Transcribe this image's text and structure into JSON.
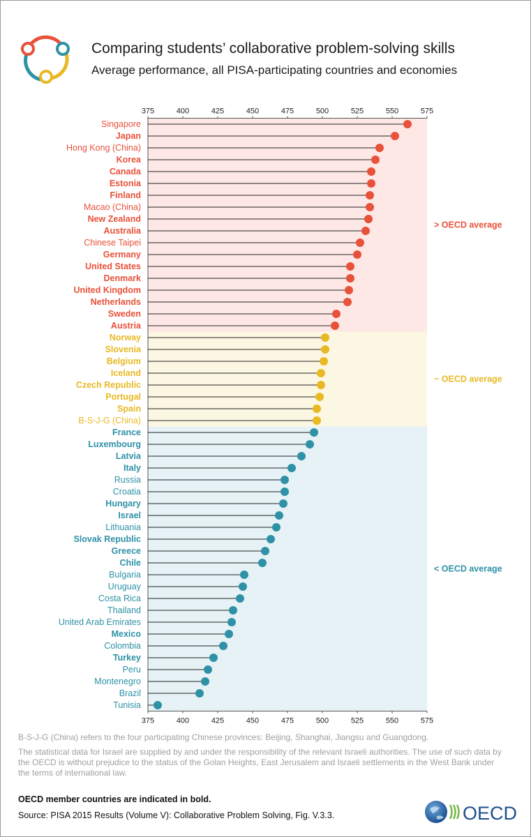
{
  "header": {
    "title": "Comparing students’ collaborative problem-solving skills",
    "subtitle": "Average performance, all PISA-participating countries and economies"
  },
  "colors": {
    "above": "#e8513a",
    "similar": "#e8b923",
    "below": "#2e91a6",
    "above_bg": "#fde8e6",
    "similar_bg": "#fcf7e2",
    "below_bg": "#e6f2f5",
    "lollipop_line": "#222222"
  },
  "chart_data": {
    "type": "lollipop",
    "title": "Comparing students’ collaborative problem-solving skills",
    "subtitle": "Average performance, all PISA-participating countries and economies",
    "xlim": [
      375,
      575
    ],
    "xticks": [
      375,
      400,
      425,
      450,
      475,
      500,
      525,
      550,
      575
    ],
    "bands": [
      {
        "group": "above",
        "label": "> OECD average"
      },
      {
        "group": "similar",
        "label": "~ OECD average"
      },
      {
        "group": "below",
        "label": "< OECD average"
      }
    ],
    "countries": [
      {
        "name": "Singapore",
        "value": 561,
        "oecd": false,
        "group": "above"
      },
      {
        "name": "Japan",
        "value": 552,
        "oecd": true,
        "group": "above"
      },
      {
        "name": "Hong Kong (China)",
        "value": 541,
        "oecd": false,
        "group": "above"
      },
      {
        "name": "Korea",
        "value": 538,
        "oecd": true,
        "group": "above"
      },
      {
        "name": "Canada",
        "value": 535,
        "oecd": true,
        "group": "above"
      },
      {
        "name": "Estonia",
        "value": 535,
        "oecd": true,
        "group": "above"
      },
      {
        "name": "Finland",
        "value": 534,
        "oecd": true,
        "group": "above"
      },
      {
        "name": "Macao (China)",
        "value": 534,
        "oecd": false,
        "group": "above"
      },
      {
        "name": "New Zealand",
        "value": 533,
        "oecd": true,
        "group": "above"
      },
      {
        "name": "Australia",
        "value": 531,
        "oecd": true,
        "group": "above"
      },
      {
        "name": "Chinese Taipei",
        "value": 527,
        "oecd": false,
        "group": "above"
      },
      {
        "name": "Germany",
        "value": 525,
        "oecd": true,
        "group": "above"
      },
      {
        "name": "United States",
        "value": 520,
        "oecd": true,
        "group": "above"
      },
      {
        "name": "Denmark",
        "value": 520,
        "oecd": true,
        "group": "above"
      },
      {
        "name": "United Kingdom",
        "value": 519,
        "oecd": true,
        "group": "above"
      },
      {
        "name": "Netherlands",
        "value": 518,
        "oecd": true,
        "group": "above"
      },
      {
        "name": "Sweden",
        "value": 510,
        "oecd": true,
        "group": "above"
      },
      {
        "name": "Austria",
        "value": 509,
        "oecd": true,
        "group": "above"
      },
      {
        "name": "Norway",
        "value": 502,
        "oecd": true,
        "group": "similar"
      },
      {
        "name": "Slovenia",
        "value": 502,
        "oecd": true,
        "group": "similar"
      },
      {
        "name": "Belgium",
        "value": 501,
        "oecd": true,
        "group": "similar"
      },
      {
        "name": "Iceland",
        "value": 499,
        "oecd": true,
        "group": "similar"
      },
      {
        "name": "Czech Republic",
        "value": 499,
        "oecd": true,
        "group": "similar"
      },
      {
        "name": "Portugal",
        "value": 498,
        "oecd": true,
        "group": "similar"
      },
      {
        "name": "Spain",
        "value": 496,
        "oecd": true,
        "group": "similar"
      },
      {
        "name": "B-S-J-G (China)",
        "value": 496,
        "oecd": false,
        "group": "similar"
      },
      {
        "name": "France",
        "value": 494,
        "oecd": true,
        "group": "below"
      },
      {
        "name": "Luxembourg",
        "value": 491,
        "oecd": true,
        "group": "below"
      },
      {
        "name": "Latvia",
        "value": 485,
        "oecd": true,
        "group": "below"
      },
      {
        "name": "Italy",
        "value": 478,
        "oecd": true,
        "group": "below"
      },
      {
        "name": "Russia",
        "value": 473,
        "oecd": false,
        "group": "below"
      },
      {
        "name": "Croatia",
        "value": 473,
        "oecd": false,
        "group": "below"
      },
      {
        "name": "Hungary",
        "value": 472,
        "oecd": true,
        "group": "below"
      },
      {
        "name": "Israel",
        "value": 469,
        "oecd": true,
        "group": "below"
      },
      {
        "name": "Lithuania",
        "value": 467,
        "oecd": false,
        "group": "below"
      },
      {
        "name": "Slovak Republic",
        "value": 463,
        "oecd": true,
        "group": "below"
      },
      {
        "name": "Greece",
        "value": 459,
        "oecd": true,
        "group": "below"
      },
      {
        "name": "Chile",
        "value": 457,
        "oecd": true,
        "group": "below"
      },
      {
        "name": "Bulgaria",
        "value": 444,
        "oecd": false,
        "group": "below"
      },
      {
        "name": "Uruguay",
        "value": 443,
        "oecd": false,
        "group": "below"
      },
      {
        "name": "Costa Rica",
        "value": 441,
        "oecd": false,
        "group": "below"
      },
      {
        "name": "Thailand",
        "value": 436,
        "oecd": false,
        "group": "below"
      },
      {
        "name": "United Arab Emirates",
        "value": 435,
        "oecd": false,
        "group": "below"
      },
      {
        "name": "Mexico",
        "value": 433,
        "oecd": true,
        "group": "below"
      },
      {
        "name": "Colombia",
        "value": 429,
        "oecd": false,
        "group": "below"
      },
      {
        "name": "Turkey",
        "value": 422,
        "oecd": true,
        "group": "below"
      },
      {
        "name": "Peru",
        "value": 418,
        "oecd": false,
        "group": "below"
      },
      {
        "name": "Montenegro",
        "value": 416,
        "oecd": false,
        "group": "below"
      },
      {
        "name": "Brazil",
        "value": 412,
        "oecd": false,
        "group": "below"
      },
      {
        "name": "Tunisia",
        "value": 382,
        "oecd": false,
        "group": "below"
      }
    ]
  },
  "notes": {
    "bsjg": "B-S-J-G (China) refers to the four participating Chinese provinces: Beijing, Shanghai, Jiangsu and Guangdong.",
    "israel": "The statistical data for Israel are supplied by and under the responsibility of the relevant Israeli authorities. The use of such data by the OECD is without prejudice to the status of the Golan Heights, East Jerusalem and Israeli settlements in the West Bank under the terms of international law."
  },
  "footer": {
    "member_note": "OECD member countries are indicated in bold.",
    "source": "Source: PISA 2015 Results (Volume V): Collaborative Problem Solving, Fig. V.3.3.",
    "logo_text": "OECD"
  }
}
